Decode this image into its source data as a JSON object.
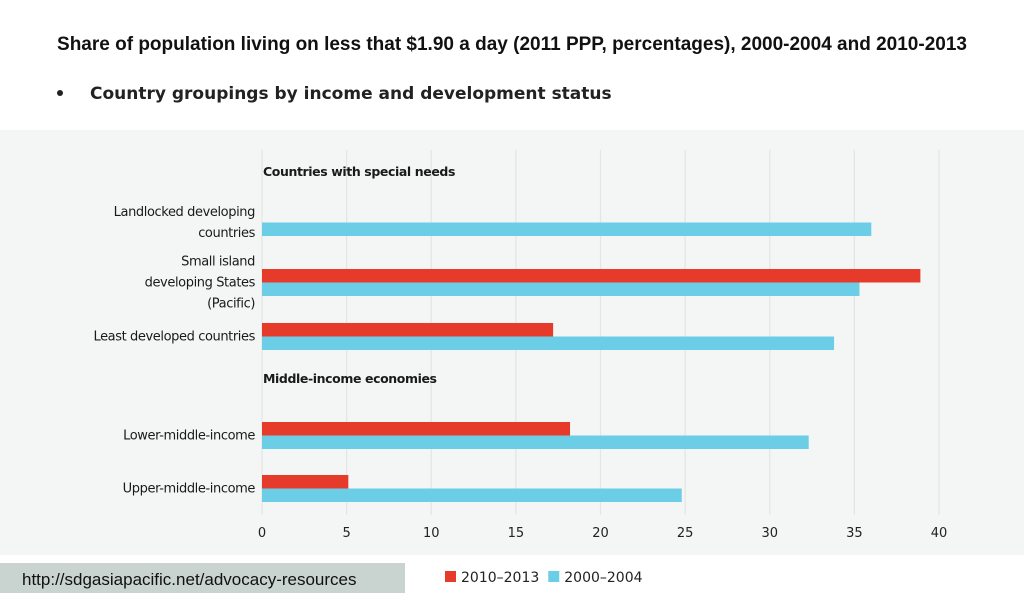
{
  "chart_data": {
    "type": "bar",
    "orientation": "horizontal",
    "title": "Share of population living on less that $1.90 a day (2011 PPP, percentages), 2000-2004 and 2010-2013",
    "subtitle": "Country groupings by income and development status",
    "groups": [
      {
        "label": "Countries with special needs",
        "categories": [
          "Landlocked developing countries",
          "Small island developing States (Pacific)",
          "Least developed countries"
        ]
      },
      {
        "label": "Middle-income economies",
        "categories": [
          "Lower-middle-income",
          "Upper-middle-income"
        ]
      }
    ],
    "categories": [
      "Landlocked developing countries",
      "Small island developing States (Pacific)",
      "Least developed countries",
      "Lower-middle-income",
      "Upper-middle-income"
    ],
    "category_lines": [
      [
        "Landlocked developing",
        "countries"
      ],
      [
        "Small island",
        "developing States",
        "(Pacific)"
      ],
      [
        "Least developed countries"
      ],
      [
        "Lower-middle-income"
      ],
      [
        "Upper-middle-income"
      ]
    ],
    "series": [
      {
        "name": "2010–2013",
        "color": "#e63b2a",
        "values": [
          null,
          38.9,
          17.2,
          18.2,
          5.1
        ]
      },
      {
        "name": "2000–2004",
        "color": "#6ccde6",
        "values": [
          36.0,
          35.3,
          33.8,
          32.3,
          24.8
        ]
      }
    ],
    "xlim": [
      0,
      40
    ],
    "xticks": [
      0,
      5,
      10,
      15,
      20,
      25,
      30,
      35,
      40
    ],
    "grid": true,
    "legend_position": "bottom"
  },
  "footer": {
    "url": "http://sdgasiapacific.net/advocacy-resources"
  }
}
